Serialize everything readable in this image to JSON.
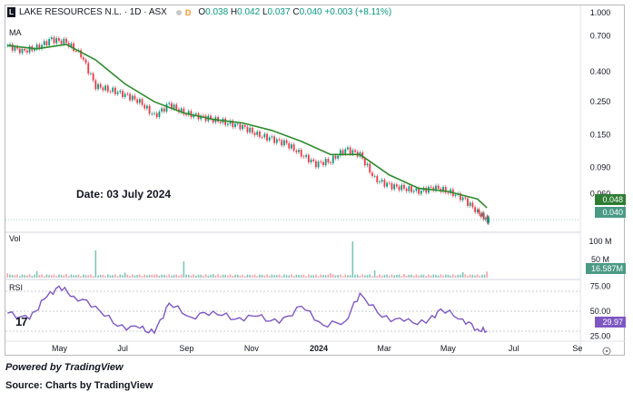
{
  "header": {
    "logo_letter": "L",
    "title": "LAKE RESOURCES N.L. · 1D · ASX",
    "interval_badge": "D",
    "ohlc": [
      {
        "key": "O",
        "value": "0.038"
      },
      {
        "key": "H",
        "value": "0.042"
      },
      {
        "key": "L",
        "value": "0.037"
      },
      {
        "key": "C",
        "value": "0.040"
      },
      {
        "key": "",
        "value": "+0.003 (+8.11%)"
      }
    ]
  },
  "ma_label": "MA",
  "vol_label": "Vol",
  "rsi_label": "RSI",
  "annotation": "Date: 03 July 2024",
  "badges": {
    "ma_value": "0.048",
    "price_value": "0.040",
    "volume_value": "16.587M",
    "rsi_value": "29.97"
  },
  "price_axis_ticks": [
    "1.000",
    "0.700",
    "0.400",
    "0.250",
    "0.150",
    "0.090",
    "0.060"
  ],
  "volume_axis_ticks": [
    "100 M",
    "50 M"
  ],
  "rsi_axis_ticks": [
    "75.00",
    "50.00"
  ],
  "rsi_axis_partial": "25.00",
  "x_axis_ticks": [
    "May",
    "Jul",
    "Sep",
    "Nov",
    "2024",
    "Mar",
    "May",
    "Jul",
    "Se"
  ],
  "tv_logo_text": "17",
  "powered_by": "Powered by TradingView",
  "source": "Source: Charts by TradingView",
  "colors": {
    "up": "#089981",
    "down": "#f23645",
    "ma_line": "#2e8b2e",
    "rsi_line": "#7e57c2",
    "price_badge": "#4a9a86",
    "ma_badge": "#2e7d32",
    "rsi_badge": "#7e57c2"
  },
  "chart_data": {
    "type": "candlestick",
    "title": "LAKE RESOURCES N.L. · 1D · ASX",
    "y_scale": "log",
    "ylim": [
      0.04,
      1.0
    ],
    "x_range": [
      "2023-04-01",
      "2024-09-30"
    ],
    "price_series": {
      "x": [
        "2023-04-03",
        "2023-04-17",
        "2023-05-01",
        "2023-05-15",
        "2023-05-29",
        "2023-06-12",
        "2023-06-26",
        "2023-07-10",
        "2023-07-24",
        "2023-08-07",
        "2023-08-21",
        "2023-09-04",
        "2023-09-18",
        "2023-10-02",
        "2023-10-16",
        "2023-10-30",
        "2023-11-13",
        "2023-11-27",
        "2023-12-11",
        "2023-12-25",
        "2024-01-08",
        "2024-01-22",
        "2024-02-05",
        "2024-02-19",
        "2024-03-04",
        "2024-03-18",
        "2024-04-01",
        "2024-04-15",
        "2024-04-29",
        "2024-05-13",
        "2024-05-27",
        "2024-06-10",
        "2024-06-24",
        "2024-07-03"
      ],
      "close": [
        0.6,
        0.55,
        0.58,
        0.66,
        0.63,
        0.52,
        0.32,
        0.3,
        0.28,
        0.25,
        0.2,
        0.24,
        0.21,
        0.2,
        0.19,
        0.18,
        0.17,
        0.15,
        0.14,
        0.13,
        0.11,
        0.095,
        0.1,
        0.12,
        0.11,
        0.075,
        0.068,
        0.065,
        0.062,
        0.066,
        0.062,
        0.056,
        0.045,
        0.04
      ]
    },
    "ma_series": {
      "x": [
        "2023-04-03",
        "2023-05-01",
        "2023-05-29",
        "2023-06-26",
        "2023-07-24",
        "2023-08-21",
        "2023-09-18",
        "2023-10-16",
        "2023-11-13",
        "2023-12-11",
        "2024-01-08",
        "2024-02-05",
        "2024-03-04",
        "2024-04-01",
        "2024-04-29",
        "2024-05-27",
        "2024-06-24",
        "2024-07-03"
      ],
      "values": [
        0.6,
        0.57,
        0.61,
        0.48,
        0.33,
        0.25,
        0.21,
        0.19,
        0.18,
        0.16,
        0.135,
        0.11,
        0.11,
        0.08,
        0.065,
        0.062,
        0.055,
        0.048
      ]
    },
    "volume_series": {
      "unit": "M",
      "ylim": [
        0,
        110
      ],
      "x": [
        "2023-04-03",
        "2023-05-01",
        "2023-05-29",
        "2023-06-26",
        "2023-07-24",
        "2023-08-21",
        "2023-09-18",
        "2023-10-16",
        "2023-11-13",
        "2023-12-11",
        "2024-01-08",
        "2024-02-05",
        "2024-02-26",
        "2024-03-18",
        "2024-04-15",
        "2024-05-13",
        "2024-06-10",
        "2024-07-03"
      ],
      "values": [
        12,
        18,
        10,
        75,
        14,
        8,
        45,
        10,
        8,
        9,
        7,
        12,
        100,
        20,
        10,
        9,
        15,
        16.587
      ]
    },
    "rsi_series": {
      "ylim": [
        20,
        80
      ],
      "x": [
        "2023-04-03",
        "2023-04-24",
        "2023-05-08",
        "2023-05-22",
        "2023-06-05",
        "2023-06-26",
        "2023-07-17",
        "2023-08-07",
        "2023-08-21",
        "2023-09-04",
        "2023-09-25",
        "2023-10-16",
        "2023-11-06",
        "2023-11-27",
        "2023-12-18",
        "2024-01-08",
        "2024-01-29",
        "2024-02-19",
        "2024-03-04",
        "2024-03-25",
        "2024-04-15",
        "2024-05-06",
        "2024-05-20",
        "2024-06-10",
        "2024-06-24",
        "2024-07-03"
      ],
      "values": [
        48,
        42,
        62,
        75,
        65,
        55,
        35,
        33,
        28,
        58,
        44,
        50,
        42,
        45,
        38,
        55,
        36,
        40,
        68,
        44,
        40,
        38,
        52,
        42,
        32,
        29.97
      ]
    }
  }
}
